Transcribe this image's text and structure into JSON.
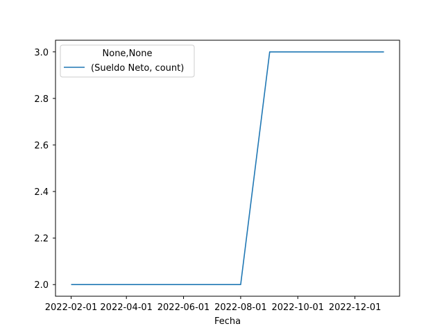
{
  "chart_data": {
    "type": "line",
    "xlabel": "Fecha",
    "ylabel": "",
    "x_tick_labels": [
      "2022-02-01",
      "2022-04-01",
      "2022-06-01",
      "2022-08-01",
      "2022-10-01",
      "2022-12-01"
    ],
    "y_tick_labels": [
      "2.0",
      "2.2",
      "2.4",
      "2.6",
      "2.8",
      "3.0"
    ],
    "y_ticks": [
      2.0,
      2.2,
      2.4,
      2.6,
      2.8,
      3.0
    ],
    "ylim": [
      1.95,
      3.05
    ],
    "legend": {
      "title": "None,None",
      "placement": "top-left",
      "entries": [
        "(Sueldo Neto, count)"
      ]
    },
    "series": [
      {
        "name": "(Sueldo Neto, count)",
        "color": "#1f77b4",
        "x": [
          "2022-02-01",
          "2022-03-01",
          "2022-04-01",
          "2022-05-01",
          "2022-06-01",
          "2022-07-01",
          "2022-08-01",
          "2022-09-01",
          "2022-10-01",
          "2022-11-01",
          "2022-12-01",
          "2023-01-01"
        ],
        "values": [
          2,
          2,
          2,
          2,
          2,
          2,
          2,
          3,
          3,
          3,
          3,
          3
        ]
      }
    ],
    "grid": false
  }
}
